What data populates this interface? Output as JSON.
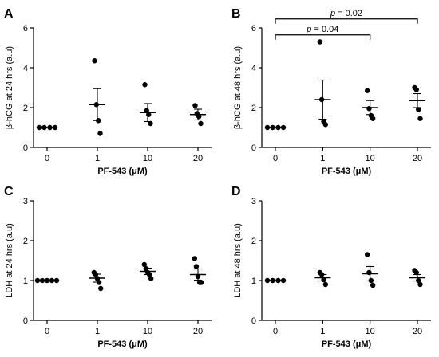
{
  "chart_data": [
    {
      "panel": "A",
      "type": "scatter",
      "xlabel": "PF-543 (μM)",
      "ylabel": "β-hCG at 24 hrs (a.u)",
      "categories": [
        "0",
        "1",
        "10",
        "20"
      ],
      "ylim": [
        0,
        6
      ],
      "yticks": [
        0,
        2,
        4,
        6
      ],
      "points": [
        [
          1,
          1,
          1,
          1
        ],
        [
          4.35,
          2.15,
          1.35,
          0.7
        ],
        [
          3.15,
          1.85,
          1.65,
          1.2
        ],
        [
          2.1,
          1.7,
          1.55,
          1.2
        ]
      ],
      "mean": [
        1.0,
        2.15,
        1.75,
        1.65
      ],
      "sem": [
        0,
        0.8,
        0.45,
        0.27
      ],
      "annotations": []
    },
    {
      "panel": "B",
      "type": "scatter",
      "xlabel": "PF-543 (μM)",
      "ylabel": "β-hCG at 48 hrs (a.u)",
      "categories": [
        "0",
        "1",
        "10",
        "20"
      ],
      "ylim": [
        0,
        6
      ],
      "yticks": [
        0,
        2,
        4,
        6
      ],
      "points": [
        [
          1,
          1,
          1,
          1
        ],
        [
          5.3,
          2.4,
          1.3,
          1.15
        ],
        [
          2.85,
          1.95,
          1.6,
          1.45
        ],
        [
          3.0,
          2.9,
          1.9,
          1.45
        ]
      ],
      "mean": [
        1.0,
        2.4,
        2.0,
        2.35
      ],
      "sem": [
        0,
        0.98,
        0.35,
        0.35
      ],
      "annotations": [
        {
          "text": "p = 0.04",
          "from": "0",
          "to": "10",
          "y": 5.65
        },
        {
          "text": "p = 0.02",
          "from": "0",
          "to": "20",
          "y": 6.45
        }
      ]
    },
    {
      "panel": "C",
      "type": "scatter",
      "xlabel": "PF-543 (μM)",
      "ylabel": "LDH at 24 hrs (a.u)",
      "categories": [
        "0",
        "1",
        "10",
        "20"
      ],
      "ylim": [
        0,
        3
      ],
      "yticks": [
        0,
        1,
        2,
        3
      ],
      "points": [
        [
          1,
          1,
          1,
          1,
          1
        ],
        [
          1.2,
          1.15,
          1.05,
          0.95,
          0.8
        ],
        [
          1.4,
          1.3,
          1.2,
          1.15,
          1.05
        ],
        [
          1.55,
          1.35,
          1.1,
          0.95,
          0.95
        ]
      ],
      "mean": [
        1.0,
        1.06,
        1.23,
        1.15
      ],
      "sem": [
        0,
        0.1,
        0.08,
        0.14
      ],
      "annotations": []
    },
    {
      "panel": "D",
      "type": "scatter",
      "xlabel": "PF-543 (μM)",
      "ylabel": "LDH at 48 hrs (a.u)",
      "categories": [
        "0",
        "1",
        "10",
        "20"
      ],
      "ylim": [
        0,
        3
      ],
      "yticks": [
        0,
        1,
        2,
        3
      ],
      "points": [
        [
          1,
          1,
          1,
          1
        ],
        [
          1.2,
          1.15,
          1.02,
          0.9
        ],
        [
          1.65,
          1.2,
          1.0,
          0.88
        ],
        [
          1.25,
          1.2,
          1.0,
          0.9
        ]
      ],
      "mean": [
        1.0,
        1.07,
        1.17,
        1.07
      ],
      "sem": [
        0,
        0.08,
        0.18,
        0.08
      ],
      "annotations": []
    }
  ]
}
